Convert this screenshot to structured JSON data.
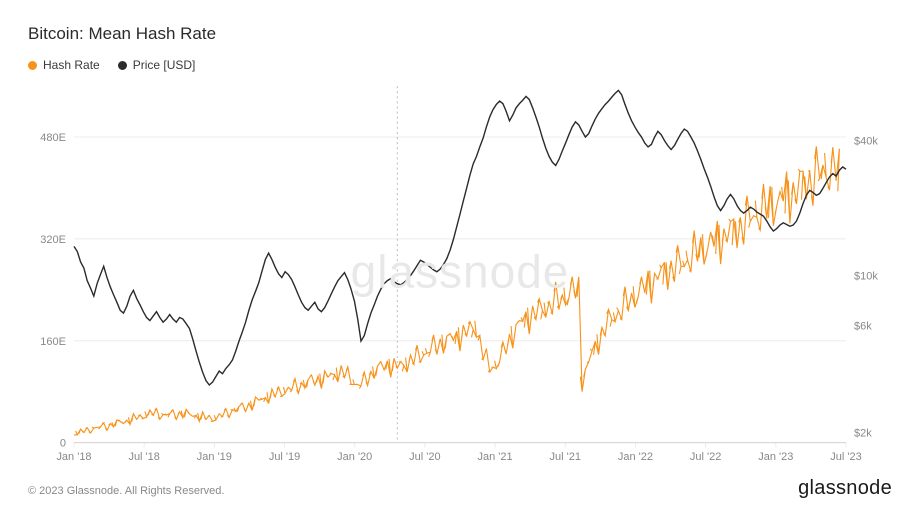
{
  "title": "Bitcoin: Mean Hash Rate",
  "legend": {
    "hash": {
      "label": "Hash Rate",
      "color": "#f7931a"
    },
    "price": {
      "label": "Price [USD]",
      "color": "#2b2b2b"
    }
  },
  "watermark": "glassnode",
  "copyright": "© 2023 Glassnode. All Rights Reserved.",
  "brand": "glassnode",
  "chart": {
    "background": "#ffffff",
    "grid_color": "#ececec",
    "axis_text_color": "#888888",
    "vline_index": 98,
    "x": {
      "ticks": [
        "Jan '18",
        "Jul '18",
        "Jan '19",
        "Jul '19",
        "Jan '20",
        "Jul '20",
        "Jan '21",
        "Jul '21",
        "Jan '22",
        "Jul '22",
        "Jan '23",
        "Jul '23"
      ]
    },
    "y_left": {
      "ticks": [
        0,
        160,
        320,
        480
      ],
      "suffix": "E",
      "min": 0,
      "max": 560
    },
    "y_right": {
      "ticks_labels": [
        "$2k",
        "$6k",
        "$10k",
        "$40k"
      ],
      "ticks_values": [
        2000,
        6000,
        10000,
        40000
      ],
      "log": true,
      "min": 1800,
      "max": 70000
    },
    "series": {
      "hash": {
        "color": "#f7931a",
        "values": [
          14,
          15,
          16,
          18,
          19,
          21,
          22,
          23,
          24,
          26,
          26,
          27,
          29,
          30,
          32,
          33,
          34,
          35,
          37,
          39,
          40,
          42,
          44,
          45,
          46,
          46,
          45,
          43,
          44,
          44,
          45,
          44,
          45,
          46,
          45,
          44,
          43,
          42,
          41,
          40,
          39,
          38,
          38,
          39,
          41,
          43,
          45,
          48,
          50,
          52,
          54,
          55,
          56,
          58,
          60,
          63,
          66,
          68,
          70,
          72,
          74,
          76,
          78,
          80,
          82,
          83,
          85,
          87,
          89,
          91,
          93,
          95,
          97,
          98,
          99,
          100,
          101,
          103,
          105,
          107,
          109,
          110,
          108,
          105,
          100,
          95,
          90,
          92,
          96,
          101,
          107,
          112,
          115,
          118,
          120,
          122,
          121,
          120,
          119,
          120,
          122,
          125,
          128,
          131,
          134,
          137,
          140,
          143,
          146,
          149,
          152,
          155,
          158,
          160,
          162,
          164,
          166,
          168,
          170,
          173,
          176,
          179,
          182,
          160,
          140,
          128,
          120,
          118,
          122,
          130,
          140,
          150,
          160,
          170,
          178,
          185,
          190,
          195,
          198,
          200,
          203,
          206,
          209,
          212,
          215,
          218,
          221,
          224,
          227,
          230,
          233,
          236,
          239,
          242,
          95,
          110,
          125,
          140,
          150,
          160,
          170,
          180,
          188,
          195,
          200,
          205,
          210,
          215,
          220,
          225,
          230,
          235,
          240,
          244,
          248,
          252,
          256,
          260,
          264,
          268,
          270,
          272,
          275,
          278,
          280,
          284,
          288,
          292,
          296,
          300,
          303,
          306,
          309,
          312,
          315,
          318,
          321,
          324,
          327,
          330,
          333,
          336,
          340,
          344,
          348,
          352,
          356,
          360,
          363,
          366,
          369,
          372,
          375,
          378,
          381,
          384,
          387,
          390,
          394,
          398,
          402,
          406,
          410,
          413,
          416,
          419,
          422,
          425,
          428,
          431,
          425,
          430,
          420
        ]
      },
      "price": {
        "color": "#2b2b2b",
        "values": [
          13500,
          12800,
          11500,
          10800,
          9500,
          8800,
          8100,
          9200,
          10100,
          11000,
          9800,
          8900,
          8200,
          7600,
          7000,
          6800,
          7300,
          8100,
          8600,
          7900,
          7400,
          6900,
          6500,
          6300,
          6600,
          6900,
          6500,
          6200,
          6400,
          6700,
          6400,
          6200,
          6500,
          6400,
          6100,
          5800,
          5200,
          4600,
          4100,
          3700,
          3400,
          3250,
          3350,
          3550,
          3750,
          3650,
          3850,
          4000,
          4200,
          4600,
          5100,
          5600,
          6200,
          7000,
          7800,
          8500,
          9300,
          10500,
          11800,
          12600,
          11800,
          10900,
          10200,
          9800,
          10400,
          10100,
          9600,
          8900,
          8200,
          7600,
          7200,
          7000,
          7300,
          7600,
          7100,
          6900,
          7200,
          7700,
          8300,
          8900,
          9500,
          9900,
          10300,
          9600,
          8700,
          7700,
          6400,
          5100,
          5400,
          6100,
          6800,
          7400,
          8100,
          8700,
          9200,
          9500,
          9700,
          9400,
          9200,
          9100,
          9300,
          9600,
          10000,
          10500,
          11100,
          11700,
          11500,
          11200,
          10900,
          10600,
          10400,
          10700,
          11200,
          11900,
          13000,
          14500,
          16500,
          18800,
          21500,
          24500,
          28000,
          31500,
          34000,
          37500,
          41000,
          46000,
          51000,
          55000,
          58000,
          60000,
          58500,
          54000,
          49000,
          52000,
          56000,
          58500,
          60500,
          63000,
          61000,
          56000,
          51000,
          46000,
          41000,
          37000,
          34000,
          32000,
          31000,
          33000,
          36000,
          39000,
          42500,
          46000,
          48500,
          47000,
          44000,
          41500,
          43000,
          46500,
          50000,
          53000,
          55500,
          58000,
          60000,
          62500,
          65000,
          67000,
          64000,
          58000,
          53000,
          49000,
          46000,
          43500,
          41500,
          39000,
          37500,
          38500,
          41500,
          44000,
          42500,
          40000,
          38000,
          36500,
          38000,
          40500,
          43000,
          45000,
          44000,
          41500,
          39000,
          36000,
          33000,
          30000,
          27500,
          25000,
          22500,
          20500,
          19500,
          20500,
          22000,
          23000,
          22000,
          20500,
          19500,
          19000,
          19500,
          20200,
          19800,
          19200,
          18800,
          18400,
          17500,
          16500,
          15800,
          16200,
          16800,
          17200,
          16900,
          16600,
          16800,
          17500,
          19000,
          21000,
          22800,
          24000,
          23500,
          22800,
          23200,
          24500,
          26000,
          27500,
          28500,
          27800,
          29500,
          30500,
          29800
        ]
      }
    }
  }
}
